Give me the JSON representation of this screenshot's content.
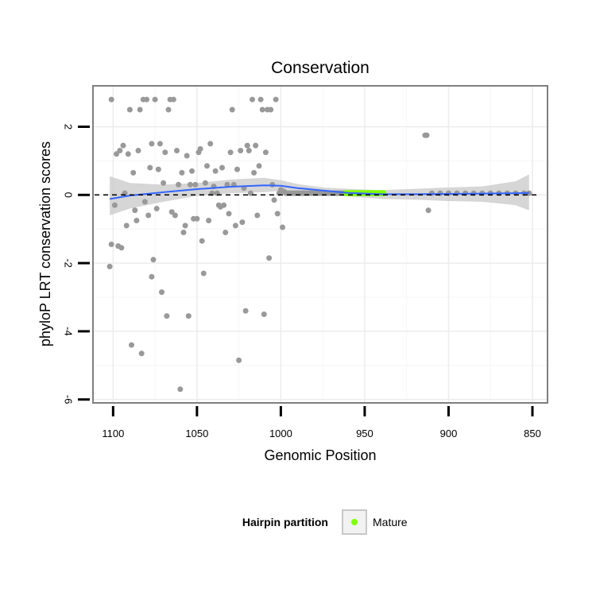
{
  "chart_data": {
    "type": "scatter",
    "title": "Conservation",
    "xlabel": "Genomic Position",
    "ylabel": "phyloP LRT conservation scores",
    "xlim": [
      1112,
      841
    ],
    "x_reversed": true,
    "ylim": [
      -6.1,
      3.2
    ],
    "x_ticks": [
      1100,
      1050,
      1000,
      950,
      900,
      850
    ],
    "x_tick_labels": [
      "1100",
      "1050",
      "1000",
      "950",
      "900",
      "850"
    ],
    "y_ticks": [
      -6,
      -4,
      -2,
      0,
      2
    ],
    "y_tick_labels": [
      "-6",
      "-4",
      "-2",
      "0",
      "2"
    ],
    "grid": true,
    "reference_line": 0,
    "colors": {
      "points": "#999999",
      "mature": "#7fff00",
      "smooth": "#3366ff",
      "ribbon": "#cccccc",
      "panel_border": "#7f7f7f",
      "grid_major": "#ececec",
      "grid_minor": "#f6f6f6"
    },
    "legend": {
      "title": "Hairpin partition",
      "placement": "bottom",
      "entries": [
        {
          "label": "Mature",
          "color": "#7fff00"
        }
      ]
    },
    "series": [
      {
        "role": "other",
        "points": [
          [
            1101,
            2.8
          ],
          [
            1102,
            -2.1
          ],
          [
            1101,
            -1.45
          ],
          [
            1099,
            -0.3
          ],
          [
            1098,
            1.2
          ],
          [
            1097,
            -1.5
          ],
          [
            1096,
            1.3
          ],
          [
            1095,
            -1.55
          ],
          [
            1094,
            1.45
          ],
          [
            1093,
            0.05
          ],
          [
            1092,
            -0.9
          ],
          [
            1091,
            1.2
          ],
          [
            1090,
            2.5
          ],
          [
            1089,
            -4.4
          ],
          [
            1088,
            0.65
          ],
          [
            1087,
            -0.45
          ],
          [
            1086,
            -0.75
          ],
          [
            1085,
            1.3
          ],
          [
            1084,
            2.5
          ],
          [
            1083,
            -4.65
          ],
          [
            1082,
            2.8
          ],
          [
            1081,
            -0.2
          ],
          [
            1080,
            2.8
          ],
          [
            1079,
            -0.6
          ],
          [
            1078,
            0.8
          ],
          [
            1077,
            -2.4
          ],
          [
            1077,
            1.5
          ],
          [
            1076,
            -1.9
          ],
          [
            1075,
            2.8
          ],
          [
            1074,
            -0.4
          ],
          [
            1073,
            0.75
          ],
          [
            1072,
            1.5
          ],
          [
            1071,
            -2.85
          ],
          [
            1070,
            0.35
          ],
          [
            1069,
            1.25
          ],
          [
            1068,
            -3.55
          ],
          [
            1067,
            2.5
          ],
          [
            1066,
            2.8
          ],
          [
            1065,
            -0.5
          ],
          [
            1064,
            2.8
          ],
          [
            1063,
            -0.6
          ],
          [
            1062,
            1.3
          ],
          [
            1061,
            0.3
          ],
          [
            1060,
            -5.7
          ],
          [
            1059,
            0.65
          ],
          [
            1058,
            -1.1
          ],
          [
            1057,
            -0.9
          ],
          [
            1056,
            1.15
          ],
          [
            1055,
            -3.55
          ],
          [
            1054,
            0.3
          ],
          [
            1053,
            0.7
          ],
          [
            1052,
            -0.7
          ],
          [
            1051,
            0.3
          ],
          [
            1050,
            -0.7
          ],
          [
            1049,
            1.25
          ],
          [
            1048,
            1.35
          ],
          [
            1047,
            -1.35
          ],
          [
            1046,
            -2.3
          ],
          [
            1045,
            0.35
          ],
          [
            1044,
            0.85
          ],
          [
            1043,
            -0.75
          ],
          [
            1042,
            1.5
          ],
          [
            1041,
            0.05
          ],
          [
            1040,
            0.25
          ],
          [
            1039,
            0.7
          ],
          [
            1038,
            0.05
          ],
          [
            1037,
            -0.3
          ],
          [
            1036,
            -0.35
          ],
          [
            1035,
            0.8
          ],
          [
            1034,
            -0.3
          ],
          [
            1033,
            -1.1
          ],
          [
            1032,
            0.3
          ],
          [
            1031,
            -0.55
          ],
          [
            1030,
            1.25
          ],
          [
            1029,
            2.5
          ],
          [
            1028,
            0.3
          ],
          [
            1027,
            -0.9
          ],
          [
            1026,
            0.75
          ],
          [
            1025,
            -4.85
          ],
          [
            1024,
            1.3
          ],
          [
            1023,
            -0.8
          ],
          [
            1022,
            0.2
          ],
          [
            1021,
            -3.4
          ],
          [
            1020,
            1.45
          ],
          [
            1019,
            1.3
          ],
          [
            1018,
            0.05
          ],
          [
            1017,
            2.8
          ],
          [
            1016,
            0.65
          ],
          [
            1015,
            1.45
          ],
          [
            1014,
            -0.6
          ],
          [
            1013,
            0.85
          ],
          [
            1012,
            2.8
          ],
          [
            1011,
            2.5
          ],
          [
            1010,
            -3.5
          ],
          [
            1009,
            1.25
          ],
          [
            1008,
            2.5
          ],
          [
            1007,
            -1.85
          ],
          [
            1006,
            2.5
          ],
          [
            1005,
            0.3
          ],
          [
            1004,
            -0.15
          ],
          [
            1003,
            2.8
          ],
          [
            1002,
            -0.55
          ],
          [
            1001,
            0.05
          ],
          [
            1000,
            0.15
          ],
          [
            999,
            -0.95
          ],
          [
            998,
            0.1
          ],
          [
            997,
            0.05
          ],
          [
            996,
            0.05
          ],
          [
            995,
            0.05
          ],
          [
            994,
            0.05
          ],
          [
            993,
            0.05
          ],
          [
            992,
            0.05
          ],
          [
            991,
            0.05
          ],
          [
            990,
            0.05
          ],
          [
            989,
            0.05
          ],
          [
            988,
            0.05
          ],
          [
            987,
            0.05
          ],
          [
            986,
            0.05
          ],
          [
            985,
            0.05
          ],
          [
            984,
            0.05
          ],
          [
            983,
            0.05
          ],
          [
            982,
            0.05
          ],
          [
            981,
            0.05
          ],
          [
            980,
            0.05
          ],
          [
            979,
            0.05
          ],
          [
            978,
            0.05
          ],
          [
            977,
            0.05
          ],
          [
            976,
            0.05
          ],
          [
            975,
            0.05
          ],
          [
            974,
            0.05
          ],
          [
            973,
            0.05
          ],
          [
            972,
            0.05
          ],
          [
            971,
            0.05
          ],
          [
            970,
            0.05
          ],
          [
            969,
            0.05
          ],
          [
            968,
            0.05
          ],
          [
            967,
            0.05
          ],
          [
            966,
            0.05
          ],
          [
            965,
            0.05
          ],
          [
            964,
            0.05
          ],
          [
            963,
            0.05
          ],
          [
            962,
            0.05
          ],
          [
            914,
            1.75
          ],
          [
            913,
            1.75
          ],
          [
            912,
            -0.45
          ],
          [
            910,
            0.05
          ],
          [
            905,
            0.05
          ],
          [
            900,
            0.05
          ],
          [
            895,
            0.05
          ],
          [
            890,
            0.05
          ],
          [
            885,
            0.05
          ],
          [
            880,
            0.05
          ],
          [
            875,
            0.05
          ],
          [
            870,
            0.05
          ],
          [
            865,
            0.05
          ],
          [
            860,
            0.05
          ],
          [
            855,
            0.05
          ],
          [
            852,
            0.05
          ]
        ]
      },
      {
        "role": "Mature",
        "points": [
          [
            961,
            0.05
          ],
          [
            959,
            0.05
          ],
          [
            957,
            0.05
          ],
          [
            955,
            0.05
          ],
          [
            953,
            0.05
          ],
          [
            951,
            0.05
          ],
          [
            949,
            0.05
          ],
          [
            947,
            0.05
          ],
          [
            945,
            0.05
          ],
          [
            943,
            0.05
          ],
          [
            941,
            0.05
          ],
          [
            939,
            0.05
          ]
        ]
      }
    ],
    "smooth": {
      "x": [
        1102,
        1090,
        1070,
        1050,
        1030,
        1010,
        1000,
        990,
        975,
        960,
        940,
        920,
        900,
        880,
        860,
        852
      ],
      "y": [
        -0.12,
        -0.02,
        0.08,
        0.17,
        0.24,
        0.28,
        0.27,
        0.2,
        0.13,
        0.06,
        0.02,
        0.02,
        0.03,
        0.04,
        0.05,
        0.06
      ],
      "lower": [
        -0.6,
        -0.4,
        -0.2,
        -0.03,
        0.05,
        0.08,
        0.12,
        0.1,
        0.06,
        -0.04,
        -0.12,
        -0.14,
        -0.18,
        -0.2,
        -0.3,
        -0.45
      ],
      "upper": [
        0.55,
        0.35,
        0.3,
        0.35,
        0.45,
        0.5,
        0.43,
        0.32,
        0.22,
        0.18,
        0.14,
        0.18,
        0.22,
        0.25,
        0.4,
        0.6
      ]
    }
  }
}
